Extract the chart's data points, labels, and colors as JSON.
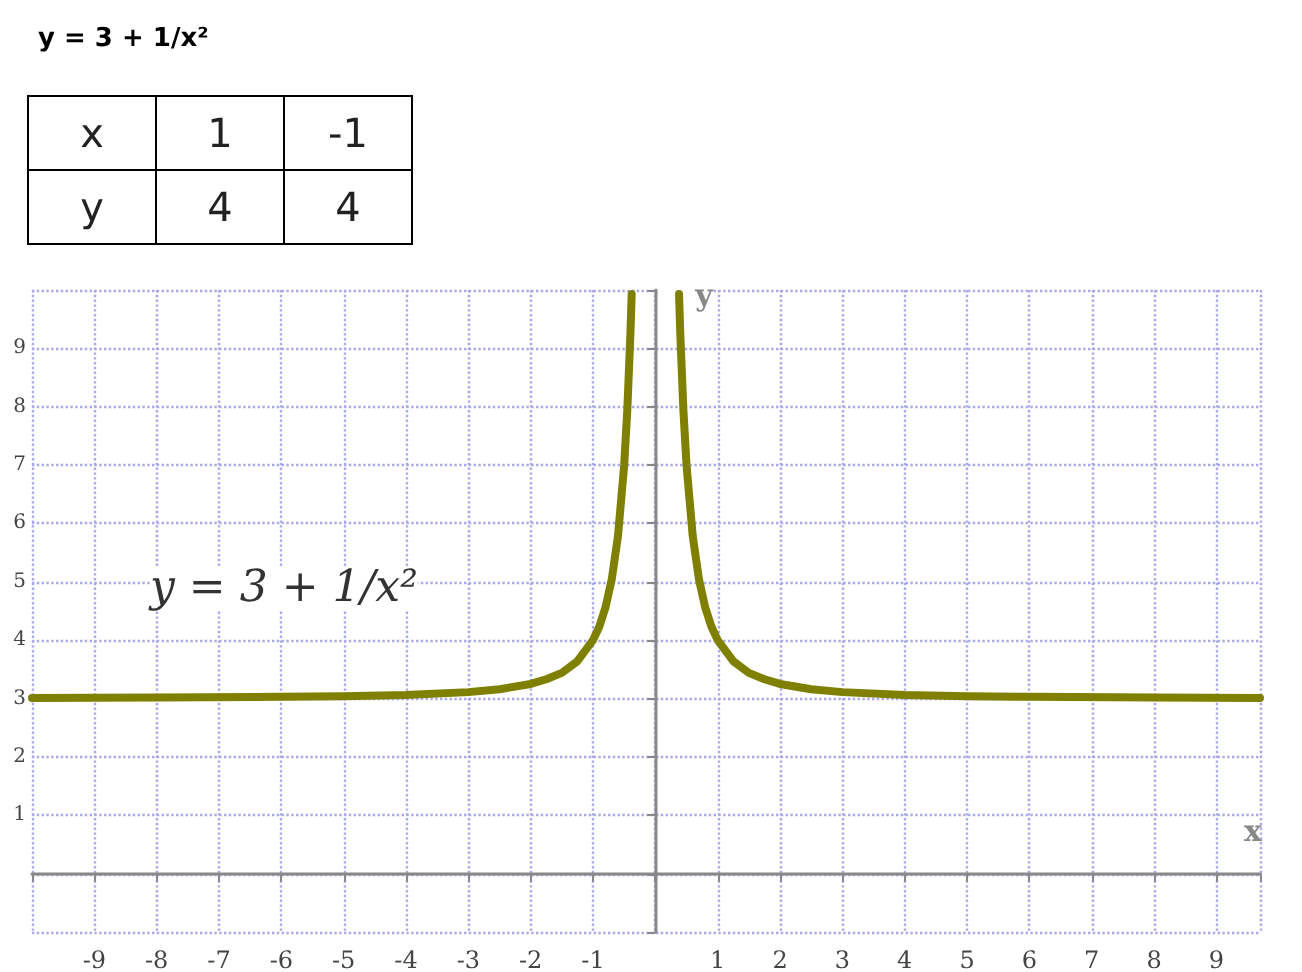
{
  "chart_data": {
    "type": "line",
    "title": "y = 3 + 1/x²",
    "xlabel": "x",
    "ylabel": "y",
    "annotations": [
      "y = 3 + 1/x²",
      "x",
      "1",
      "-1",
      "y",
      "4",
      "4"
    ],
    "x": [
      -10,
      -8,
      -6,
      -5,
      -4,
      -3,
      -2.5,
      -2,
      -1.75,
      -1.5,
      -1.25,
      -1,
      -0.9,
      -0.8,
      -0.7,
      -0.6,
      -0.5,
      -0.45,
      -0.4,
      -0.38,
      0,
      0.38,
      0.4,
      0.45,
      0.5,
      0.6,
      0.7,
      0.8,
      0.9,
      1,
      1.25,
      1.5,
      1.75,
      2,
      2.5,
      3,
      4,
      5,
      6,
      8,
      9.7
    ],
    "series": [
      {
        "color": "#7f7f00",
        "values": [
          3.01,
          3.02,
          3.03,
          3.04,
          3.06,
          3.11,
          3.16,
          3.25,
          3.33,
          3.44,
          3.64,
          4,
          4.23,
          4.56,
          5.04,
          5.78,
          7,
          7.94,
          9.25,
          9.93,
          null,
          9.93,
          9.25,
          7.94,
          7,
          5.78,
          5.04,
          4.56,
          4.23,
          4,
          3.64,
          3.44,
          3.33,
          3.25,
          3.16,
          3.11,
          3.06,
          3.04,
          3.03,
          3.02,
          3.01
        ]
      }
    ],
    "xlim": [
      -10,
      9.7
    ],
    "ylim": [
      -1,
      10
    ],
    "xticks": [
      -9,
      -8,
      -7,
      -6,
      -5,
      -4,
      -3,
      -2,
      -1,
      1,
      2,
      3,
      4,
      5,
      6,
      7,
      8,
      9
    ],
    "yticks": [
      1,
      2,
      3,
      4,
      5,
      6,
      7,
      8,
      9
    ],
    "grid": true,
    "marker": "none",
    "line_style": "solid"
  }
}
